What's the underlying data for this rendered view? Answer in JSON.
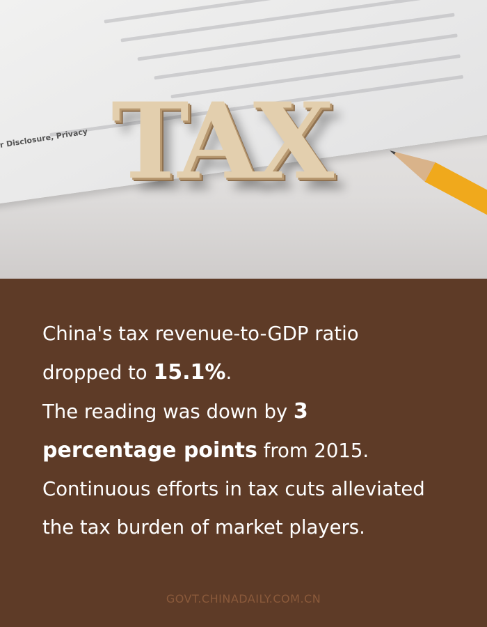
{
  "photo": {
    "letters": "TAX",
    "paper_text": "r Disclosure, Privacy"
  },
  "body": {
    "line1": "China's tax revenue-to-GDP ratio",
    "line2_pre": "dropped to ",
    "line2_bold": "15.1%",
    "line2_post": ".",
    "line3_pre": "The reading was down by ",
    "line3_bold": "3",
    "line4_bold": "percentage points",
    "line4_post": " from 2015.",
    "line5": "Continuous efforts in tax cuts alleviated",
    "line6": "the tax burden of market players."
  },
  "footer": {
    "source": "GOVT.CHINADAILY.COM.CN"
  },
  "colors": {
    "background": "#5e3b27",
    "text": "#ffffff",
    "footer": "#8b5a3b"
  }
}
